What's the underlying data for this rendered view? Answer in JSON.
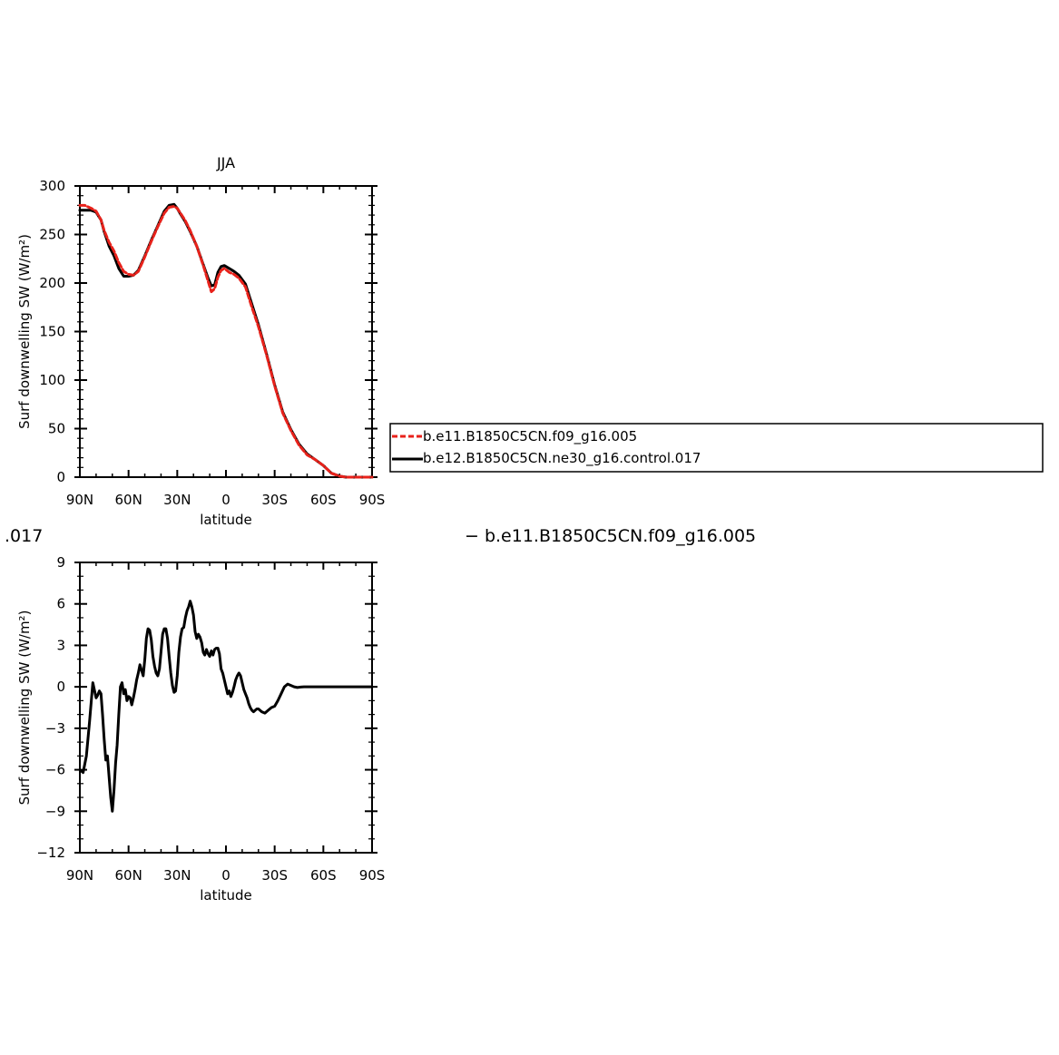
{
  "chart_data": [
    {
      "type": "line",
      "title": "JJA",
      "xlabel": "latitude",
      "ylabel": "Surf downwelling SW (W/m²)",
      "xlim": [
        90,
        -90
      ],
      "ylim": [
        0,
        300
      ],
      "x_ticks": [
        90,
        60,
        30,
        0,
        -30,
        -60,
        -90
      ],
      "x_tick_labels": [
        "90N",
        "60N",
        "30N",
        "0",
        "30S",
        "60S",
        "90S"
      ],
      "y_ticks": [
        0,
        50,
        100,
        150,
        200,
        250,
        300
      ],
      "y_tick_labels": [
        "0",
        "50",
        "100",
        "150",
        "200",
        "250",
        "300"
      ],
      "grid": false,
      "legend_position": "right",
      "series": [
        {
          "name": "b.e11.B1850C5CN.f09_g16.005",
          "color": "#e8221b",
          "dash": "dashed",
          "x": [
            90,
            87,
            83,
            80,
            77,
            75,
            72,
            69,
            66,
            63,
            60,
            57,
            54,
            50,
            46,
            42,
            38,
            35,
            32,
            30,
            28,
            25,
            22,
            18,
            14,
            11,
            9,
            7,
            5,
            3,
            1,
            -2,
            -5,
            -8,
            -12,
            -16,
            -20,
            -25,
            -30,
            -35,
            -40,
            -45,
            -50,
            -55,
            -60,
            -65,
            -70,
            -74,
            -78,
            -82,
            -86,
            -90
          ],
          "y": [
            280,
            280,
            277,
            274,
            265,
            254,
            242,
            233,
            221,
            212,
            209,
            208,
            212,
            227,
            243,
            258,
            272,
            278,
            279,
            277,
            272,
            264,
            254,
            238,
            218,
            202,
            191,
            194,
            206,
            213,
            215,
            211,
            209,
            205,
            196,
            175,
            155,
            126,
            94,
            66,
            48,
            33,
            23,
            18,
            12,
            4,
            1,
            0,
            0,
            0,
            0,
            0
          ]
        },
        {
          "name": "b.e12.B1850C5CN.ne30_g16.control.017",
          "color": "#000000",
          "dash": "solid",
          "x": [
            90,
            87,
            83,
            80,
            77,
            75,
            72,
            69,
            66,
            63,
            60,
            57,
            54,
            50,
            46,
            42,
            38,
            35,
            32,
            30,
            28,
            25,
            22,
            18,
            14,
            11,
            9,
            7,
            5,
            3,
            1,
            -2,
            -5,
            -8,
            -12,
            -16,
            -20,
            -25,
            -30,
            -35,
            -40,
            -45,
            -50,
            -55,
            -60,
            -65,
            -70,
            -74,
            -78,
            -82,
            -86,
            -90
          ],
          "y": [
            275,
            275,
            275,
            273,
            265,
            253,
            238,
            228,
            215,
            207,
            207,
            208,
            213,
            228,
            244,
            259,
            274,
            280,
            281,
            277,
            271,
            263,
            253,
            238,
            219,
            205,
            197,
            198,
            211,
            217,
            218,
            215,
            212,
            208,
            199,
            178,
            157,
            127,
            95,
            67,
            49,
            34,
            24,
            18,
            12,
            4,
            1,
            0,
            0,
            0,
            0,
            0
          ]
        }
      ]
    },
    {
      "type": "line",
      "title": "",
      "xlabel": "latitude",
      "ylabel": "Surf downwelling SW (W/m²)",
      "xlim": [
        90,
        -90
      ],
      "ylim": [
        -12,
        9
      ],
      "x_ticks": [
        90,
        60,
        30,
        0,
        -30,
        -60,
        -90
      ],
      "x_tick_labels": [
        "90N",
        "60N",
        "30N",
        "0",
        "30S",
        "60S",
        "90S"
      ],
      "y_ticks": [
        -12,
        -9,
        -6,
        -3,
        0,
        3,
        6,
        9
      ],
      "y_tick_labels": [
        "−12",
        "−9",
        "−6",
        "−3",
        "0",
        "3",
        "6",
        "9"
      ],
      "grid": false,
      "series": [
        {
          "color": "#000000",
          "dash": "solid",
          "x": [
            90,
            88,
            86,
            84,
            82,
            80,
            79,
            78,
            77,
            76,
            75,
            74,
            73,
            72,
            71,
            70,
            69,
            68,
            67,
            66,
            65,
            64,
            63,
            62,
            61,
            60,
            59,
            58,
            57,
            56,
            55,
            54,
            53,
            52,
            51,
            50,
            49,
            48,
            47,
            46,
            45,
            44,
            43,
            42,
            41,
            40,
            39,
            38,
            37,
            36,
            35,
            34,
            33,
            32,
            31,
            30,
            29,
            28,
            27,
            26,
            25,
            24,
            23,
            22,
            21,
            20,
            19,
            18,
            17,
            16,
            15,
            14,
            13,
            12,
            11,
            10,
            9,
            8,
            7,
            6,
            5,
            4,
            3,
            2,
            1,
            0,
            -1,
            -2,
            -3,
            -4,
            -5,
            -6,
            -7,
            -8,
            -9,
            -10,
            -11,
            -12,
            -13,
            -14,
            -15,
            -16,
            -17,
            -18,
            -19,
            -20,
            -22,
            -24,
            -26,
            -28,
            -30,
            -32,
            -34,
            -36,
            -38,
            -40,
            -42,
            -44,
            -46,
            -48,
            -50,
            -52,
            -54,
            -56,
            -58,
            -60,
            -62,
            -64,
            -66,
            -68,
            -70,
            -75,
            -80,
            -85,
            -90
          ],
          "y": [
            -6.0,
            -6.2,
            -5.0,
            -2.5,
            0.3,
            -0.8,
            -0.6,
            -0.3,
            -0.5,
            -2.0,
            -3.8,
            -5.3,
            -5.0,
            -6.5,
            -8.0,
            -9.0,
            -7.5,
            -5.5,
            -4.2,
            -2.0,
            0.0,
            0.3,
            -0.5,
            -0.2,
            -1.0,
            -0.7,
            -0.8,
            -1.3,
            -0.8,
            -0.2,
            0.5,
            1.0,
            1.6,
            1.2,
            0.8,
            2.0,
            3.5,
            4.2,
            4.1,
            3.4,
            2.2,
            1.5,
            1.0,
            0.8,
            1.3,
            2.5,
            3.8,
            4.2,
            4.2,
            3.5,
            2.2,
            1.0,
            0.1,
            -0.4,
            -0.3,
            0.8,
            2.5,
            3.6,
            4.2,
            4.3,
            5.0,
            5.5,
            5.8,
            6.2,
            5.8,
            5.2,
            4.0,
            3.5,
            3.8,
            3.6,
            3.2,
            2.5,
            2.3,
            2.7,
            2.4,
            2.2,
            2.6,
            2.3,
            2.7,
            2.8,
            2.8,
            2.4,
            1.3,
            1.0,
            0.5,
            0.0,
            -0.5,
            -0.3,
            -0.7,
            -0.4,
            0.0,
            0.5,
            0.8,
            1.0,
            0.8,
            0.3,
            -0.2,
            -0.5,
            -0.8,
            -1.2,
            -1.5,
            -1.7,
            -1.8,
            -1.7,
            -1.6,
            -1.6,
            -1.8,
            -1.9,
            -1.7,
            -1.5,
            -1.4,
            -1.0,
            -0.5,
            0.0,
            0.2,
            0.1,
            0.0,
            -0.05,
            -0.02,
            0.0,
            0.0,
            0.0,
            0.0,
            0.0,
            0.0,
            0.0,
            0.0,
            0.0,
            0.0,
            0.0,
            0.0,
            0.0,
            0.0,
            0.0,
            0.0
          ]
        }
      ]
    }
  ],
  "legend_items": [
    {
      "label": "b.e11.B1850C5CN.f09_g16.005",
      "color": "#e8221b",
      "dash": "dashed"
    },
    {
      "label": "b.e12.B1850C5CN.ne30_g16.control.017",
      "color": "#000000",
      "dash": "solid"
    }
  ],
  "stray_text_left": ".017",
  "stray_text_right": "−  b.e11.B1850C5CN.f09_g16.005"
}
